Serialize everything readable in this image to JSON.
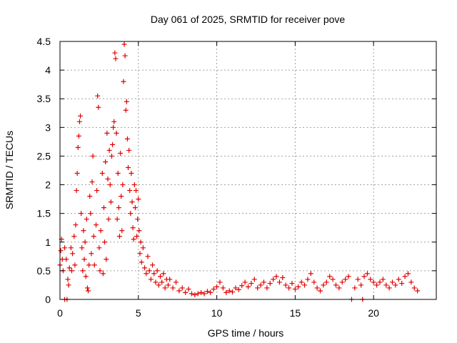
{
  "chart_data": {
    "type": "scatter",
    "title": "Day 061 of 2025, SRMTID for receiver pove",
    "xlabel": "GPS time / hours",
    "ylabel": "SRMTID / TECUs",
    "xlim": [
      0,
      24
    ],
    "ylim": [
      0,
      4.5
    ],
    "xticks": [
      0,
      5,
      10,
      15,
      20
    ],
    "xtick_labels": [
      "0",
      "5",
      "10",
      "15",
      "20"
    ],
    "yticks": [
      0,
      0.5,
      1,
      1.5,
      2,
      2.5,
      3,
      3.5,
      4,
      4.5
    ],
    "ytick_labels": [
      "0",
      "0.5",
      "1",
      "1.5",
      "2",
      "2.5",
      "3",
      "3.5",
      "4",
      "4.5"
    ],
    "grid": true,
    "marker": "plus",
    "color": "#e00000",
    "series": [
      {
        "name": "SRMTID",
        "points": [
          [
            0.0,
            0.6
          ],
          [
            0.05,
            0.85
          ],
          [
            0.1,
            1.05
          ],
          [
            0.15,
            0.7
          ],
          [
            0.2,
            0.5
          ],
          [
            0.3,
            0.9
          ],
          [
            0.4,
            0.7
          ],
          [
            0.5,
            0.35
          ],
          [
            0.55,
            0.25
          ],
          [
            0.6,
            0.55
          ],
          [
            0.7,
            0.9
          ],
          [
            0.75,
            0.5
          ],
          [
            0.8,
            0.8
          ],
          [
            0.9,
            1.1
          ],
          [
            0.95,
            0.6
          ],
          [
            1.0,
            1.3
          ],
          [
            1.05,
            1.9
          ],
          [
            1.1,
            2.2
          ],
          [
            1.15,
            2.65
          ],
          [
            1.2,
            2.85
          ],
          [
            1.25,
            3.1
          ],
          [
            1.3,
            3.2
          ],
          [
            1.35,
            1.5
          ],
          [
            1.4,
            0.9
          ],
          [
            1.45,
            0.5
          ],
          [
            1.5,
            1.2
          ],
          [
            1.55,
            0.7
          ],
          [
            1.6,
            1.0
          ],
          [
            1.65,
            0.4
          ],
          [
            1.7,
            1.4
          ],
          [
            1.75,
            0.2
          ],
          [
            1.8,
            0.15
          ],
          [
            1.85,
            0.6
          ],
          [
            1.9,
            1.8
          ],
          [
            1.95,
            1.5
          ],
          [
            2.0,
            0.8
          ],
          [
            2.05,
            2.05
          ],
          [
            2.1,
            2.5
          ],
          [
            2.15,
            1.1
          ],
          [
            2.2,
            0.6
          ],
          [
            2.3,
            1.3
          ],
          [
            2.35,
            1.9
          ],
          [
            2.4,
            3.55
          ],
          [
            2.45,
            3.35
          ],
          [
            2.5,
            0.9
          ],
          [
            2.55,
            0.5
          ],
          [
            2.6,
            1.2
          ],
          [
            2.7,
            2.2
          ],
          [
            2.75,
            0.45
          ],
          [
            2.8,
            1.6
          ],
          [
            2.85,
            1.0
          ],
          [
            2.9,
            2.4
          ],
          [
            2.95,
            0.7
          ],
          [
            3.0,
            2.9
          ],
          [
            3.05,
            2.1
          ],
          [
            3.1,
            1.4
          ],
          [
            3.15,
            2.6
          ],
          [
            3.2,
            2.0
          ],
          [
            3.25,
            1.7
          ],
          [
            3.3,
            2.5
          ],
          [
            3.35,
            2.7
          ],
          [
            3.4,
            3.0
          ],
          [
            3.45,
            3.1
          ],
          [
            3.5,
            4.3
          ],
          [
            3.55,
            4.2
          ],
          [
            3.6,
            2.9
          ],
          [
            3.65,
            1.4
          ],
          [
            3.7,
            2.2
          ],
          [
            3.75,
            1.6
          ],
          [
            3.8,
            1.1
          ],
          [
            3.85,
            2.55
          ],
          [
            3.9,
            1.8
          ],
          [
            3.95,
            1.2
          ],
          [
            4.0,
            2.0
          ],
          [
            4.05,
            3.8
          ],
          [
            4.1,
            4.45
          ],
          [
            4.15,
            4.25
          ],
          [
            4.2,
            3.3
          ],
          [
            4.25,
            3.45
          ],
          [
            4.3,
            2.8
          ],
          [
            4.35,
            2.3
          ],
          [
            4.4,
            2.6
          ],
          [
            4.45,
            1.9
          ],
          [
            4.5,
            1.5
          ],
          [
            4.55,
            2.2
          ],
          [
            4.6,
            1.7
          ],
          [
            4.65,
            1.25
          ],
          [
            4.7,
            1.05
          ],
          [
            4.75,
            2.0
          ],
          [
            4.8,
            1.6
          ],
          [
            4.85,
            1.9
          ],
          [
            4.9,
            1.1
          ],
          [
            4.95,
            1.4
          ],
          [
            5.0,
            1.75
          ],
          [
            5.05,
            1.2
          ],
          [
            5.1,
            0.8
          ],
          [
            5.15,
            1.0
          ],
          [
            5.2,
            0.65
          ],
          [
            5.3,
            0.9
          ],
          [
            5.4,
            0.55
          ],
          [
            5.5,
            0.45
          ],
          [
            5.6,
            0.75
          ],
          [
            5.7,
            0.5
          ],
          [
            5.8,
            0.35
          ],
          [
            5.9,
            0.6
          ],
          [
            6.0,
            0.45
          ],
          [
            6.1,
            0.3
          ],
          [
            6.2,
            0.5
          ],
          [
            6.3,
            0.25
          ],
          [
            6.4,
            0.4
          ],
          [
            6.5,
            0.3
          ],
          [
            6.6,
            0.45
          ],
          [
            6.7,
            0.2
          ],
          [
            6.8,
            0.35
          ],
          [
            6.9,
            0.25
          ],
          [
            7.0,
            0.35
          ],
          [
            7.2,
            0.2
          ],
          [
            7.4,
            0.3
          ],
          [
            7.6,
            0.15
          ],
          [
            7.8,
            0.2
          ],
          [
            8.0,
            0.12
          ],
          [
            8.2,
            0.18
          ],
          [
            8.4,
            0.1
          ],
          [
            8.6,
            0.08
          ],
          [
            8.8,
            0.1
          ],
          [
            9.0,
            0.12
          ],
          [
            9.2,
            0.1
          ],
          [
            9.4,
            0.14
          ],
          [
            9.6,
            0.12
          ],
          [
            9.8,
            0.18
          ],
          [
            10.0,
            0.22
          ],
          [
            10.2,
            0.3
          ],
          [
            10.4,
            0.2
          ],
          [
            10.6,
            0.12
          ],
          [
            10.8,
            0.15
          ],
          [
            11.0,
            0.13
          ],
          [
            11.2,
            0.2
          ],
          [
            11.4,
            0.17
          ],
          [
            11.6,
            0.24
          ],
          [
            11.8,
            0.3
          ],
          [
            12.0,
            0.22
          ],
          [
            12.2,
            0.28
          ],
          [
            12.4,
            0.35
          ],
          [
            12.6,
            0.2
          ],
          [
            12.8,
            0.25
          ],
          [
            13.0,
            0.3
          ],
          [
            13.2,
            0.2
          ],
          [
            13.4,
            0.28
          ],
          [
            13.6,
            0.35
          ],
          [
            13.8,
            0.4
          ],
          [
            14.0,
            0.3
          ],
          [
            14.2,
            0.38
          ],
          [
            14.4,
            0.25
          ],
          [
            14.6,
            0.2
          ],
          [
            14.8,
            0.28
          ],
          [
            15.0,
            0.18
          ],
          [
            15.2,
            0.22
          ],
          [
            15.4,
            0.3
          ],
          [
            15.6,
            0.25
          ],
          [
            15.8,
            0.35
          ],
          [
            16.0,
            0.45
          ],
          [
            16.2,
            0.3
          ],
          [
            16.4,
            0.2
          ],
          [
            16.6,
            0.15
          ],
          [
            16.8,
            0.25
          ],
          [
            17.0,
            0.3
          ],
          [
            17.2,
            0.4
          ],
          [
            17.4,
            0.35
          ],
          [
            17.6,
            0.25
          ],
          [
            17.8,
            0.2
          ],
          [
            18.0,
            0.3
          ],
          [
            18.2,
            0.35
          ],
          [
            18.4,
            0.4
          ],
          [
            18.8,
            0.2
          ],
          [
            19.0,
            0.35
          ],
          [
            19.2,
            0.25
          ],
          [
            19.4,
            0.4
          ],
          [
            19.6,
            0.45
          ],
          [
            19.8,
            0.35
          ],
          [
            20.0,
            0.3
          ],
          [
            20.2,
            0.25
          ],
          [
            20.4,
            0.3
          ],
          [
            20.6,
            0.35
          ],
          [
            20.8,
            0.25
          ],
          [
            21.0,
            0.2
          ],
          [
            21.2,
            0.3
          ],
          [
            21.4,
            0.25
          ],
          [
            21.6,
            0.35
          ],
          [
            21.8,
            0.28
          ],
          [
            22.0,
            0.4
          ],
          [
            22.2,
            0.45
          ],
          [
            22.4,
            0.3
          ],
          [
            22.6,
            0.2
          ],
          [
            22.8,
            0.15
          ],
          [
            0.3,
            0.0
          ],
          [
            0.45,
            0.0
          ],
          [
            18.6,
            0.0
          ],
          [
            19.3,
            0.0
          ]
        ]
      }
    ]
  }
}
